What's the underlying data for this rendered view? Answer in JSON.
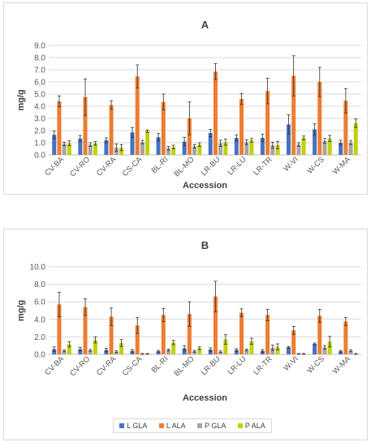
{
  "chart_data": [
    {
      "type": "bar",
      "title": "A",
      "xlabel": "Accession",
      "ylabel": "mg/g",
      "ylim": [
        0,
        9
      ],
      "yticks": [
        "0.0",
        "1.0",
        "2.0",
        "3.0",
        "4.0",
        "5.0",
        "6.0",
        "7.0",
        "8.0",
        "9.0"
      ],
      "grid": true,
      "categories": [
        "CV-BA",
        "CV-RO",
        "CV-RA",
        "CS-CA",
        "BL-RI",
        "BL-MO",
        "LR-BU",
        "LR-LU",
        "LR-TR",
        "W-VI",
        "W-CS",
        "W-MA"
      ],
      "series": [
        {
          "name": "L GLA",
          "color": "#4472c4",
          "values": [
            1.65,
            1.35,
            1.2,
            1.85,
            1.45,
            1.1,
            1.8,
            1.4,
            1.4,
            2.5,
            2.1,
            1.0
          ],
          "errors": [
            0.3,
            0.25,
            0.2,
            0.4,
            0.3,
            0.35,
            0.3,
            0.25,
            0.3,
            0.8,
            0.45,
            0.2
          ]
        },
        {
          "name": "L ALA",
          "color": "#ed7d31",
          "values": [
            4.4,
            4.75,
            4.1,
            6.45,
            4.35,
            3.0,
            6.85,
            4.6,
            5.25,
            6.5,
            6.0,
            4.45
          ],
          "errors": [
            0.45,
            1.5,
            0.35,
            0.95,
            0.65,
            1.35,
            0.65,
            0.45,
            1.05,
            1.65,
            1.2,
            1.0
          ]
        },
        {
          "name": "P GLA",
          "color": "#a5a5a5",
          "values": [
            0.9,
            0.85,
            0.6,
            1.05,
            0.55,
            0.7,
            0.95,
            1.05,
            0.8,
            0.85,
            1.15,
            1.0
          ],
          "errors": [
            0.15,
            0.15,
            0.3,
            0.15,
            0.15,
            0.15,
            0.25,
            0.2,
            0.25,
            0.15,
            0.2,
            0.15
          ]
        },
        {
          "name": "P ALA",
          "color": "#c0d10d",
          "values": [
            0.95,
            0.95,
            0.6,
            1.95,
            0.65,
            0.85,
            1.05,
            1.2,
            0.8,
            1.4,
            1.35,
            2.6
          ],
          "errors": [
            0.2,
            0.15,
            0.25,
            0.1,
            0.15,
            0.15,
            0.25,
            0.15,
            0.3,
            0.15,
            0.25,
            0.35
          ]
        }
      ]
    },
    {
      "type": "bar",
      "title": "B",
      "xlabel": "Accession",
      "ylabel": "mg/g",
      "ylim": [
        0,
        10
      ],
      "yticks": [
        "0.0",
        "2.0",
        "4.0",
        "6.0",
        "8.0",
        "10.0"
      ],
      "grid": true,
      "categories": [
        "CV-BA",
        "CV-RO",
        "CV-RA",
        "CS-CA",
        "BL-RI",
        "BL-MO",
        "LR-BU",
        "LR-LU",
        "LR-TR",
        "W-VI",
        "W-CS",
        "W-MA"
      ],
      "series": [
        {
          "name": "L GLA",
          "color": "#4472c4",
          "values": [
            0.6,
            0.6,
            0.5,
            0.4,
            0.35,
            0.7,
            0.55,
            0.5,
            0.4,
            0.8,
            1.2,
            0.35
          ],
          "errors": [
            0.25,
            0.2,
            0.2,
            0.15,
            0.1,
            0.3,
            0.2,
            0.15,
            0.15,
            0.1,
            0.1,
            0.1
          ]
        },
        {
          "name": "L ALA",
          "color": "#ed7d31",
          "values": [
            5.7,
            5.4,
            4.3,
            3.3,
            4.5,
            4.6,
            6.6,
            4.75,
            4.5,
            2.75,
            4.4,
            3.75
          ],
          "errors": [
            1.4,
            0.95,
            1.0,
            0.9,
            0.75,
            1.4,
            1.75,
            0.45,
            0.65,
            0.45,
            0.75,
            0.45
          ]
        },
        {
          "name": "P GLA",
          "color": "#a5a5a5",
          "values": [
            0.4,
            0.45,
            0.3,
            0.05,
            0.5,
            0.35,
            0.3,
            0.5,
            0.75,
            0.05,
            0.8,
            0.4
          ],
          "errors": [
            0.1,
            0.1,
            0.1,
            0.05,
            0.1,
            0.1,
            0.1,
            0.1,
            0.3,
            0.05,
            0.2,
            0.1
          ]
        },
        {
          "name": "P ALA",
          "color": "#c0d10d",
          "values": [
            1.15,
            1.65,
            1.3,
            0.05,
            1.35,
            0.7,
            1.7,
            1.5,
            0.85,
            0.05,
            1.45,
            0.05
          ],
          "errors": [
            0.3,
            0.35,
            0.4,
            0.05,
            0.25,
            0.15,
            0.55,
            0.35,
            0.35,
            0.05,
            0.6,
            0.05
          ]
        }
      ]
    }
  ],
  "legend": [
    {
      "label": "L GLA",
      "color": "#4472c4"
    },
    {
      "label": "L ALA",
      "color": "#ed7d31"
    },
    {
      "label": "P GLA",
      "color": "#a5a5a5"
    },
    {
      "label": "P ALA",
      "color": "#c0d10d"
    }
  ]
}
